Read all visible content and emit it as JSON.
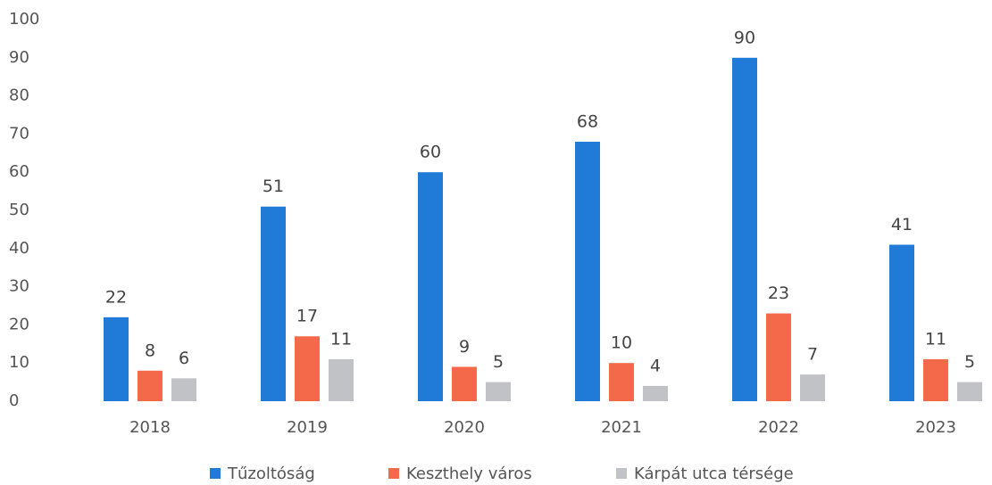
{
  "chart_data": {
    "type": "bar",
    "categories": [
      "2018",
      "2019",
      "2020",
      "2021",
      "2022",
      "2023"
    ],
    "series": [
      {
        "name": "Tűzoltóság",
        "color": "#1f7ad8",
        "values": [
          22,
          51,
          60,
          68,
          90,
          41
        ]
      },
      {
        "name": "Keszthely város",
        "color": "#f4694a",
        "values": [
          8,
          17,
          9,
          10,
          23,
          11
        ]
      },
      {
        "name": "Kárpát utca térsége",
        "color": "#c0c2c6",
        "values": [
          6,
          11,
          5,
          4,
          7,
          5
        ]
      }
    ],
    "ylim": [
      0,
      100
    ],
    "yticks": [
      0,
      10,
      20,
      30,
      40,
      50,
      60,
      70,
      80,
      90,
      100
    ],
    "legend": "bottom"
  }
}
